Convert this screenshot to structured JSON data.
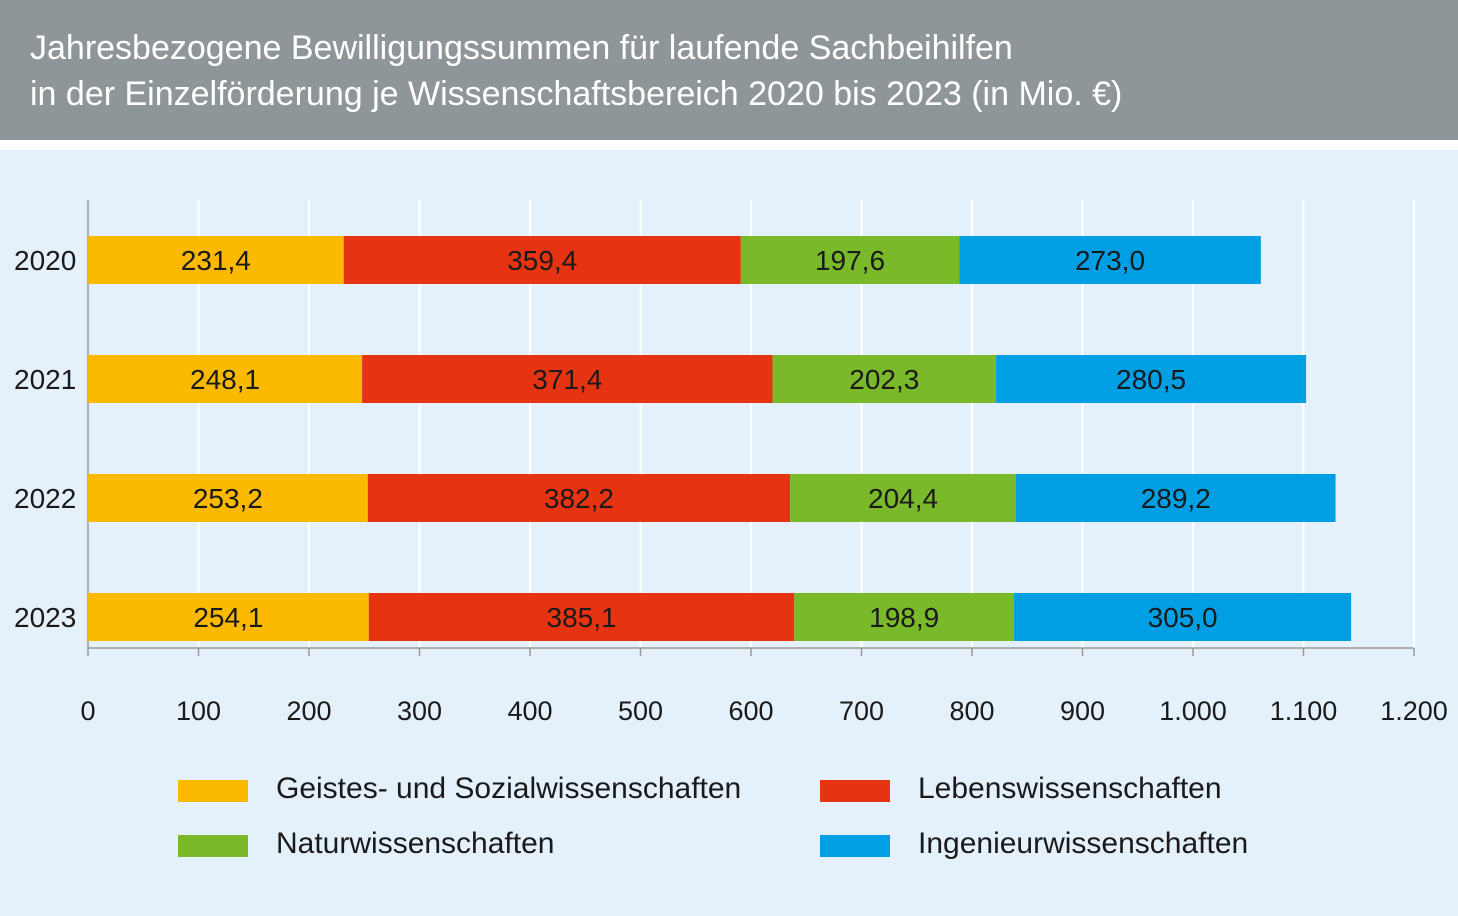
{
  "chart_data": {
    "type": "bar",
    "orientation": "horizontal",
    "stacked": true,
    "title_lines": [
      "Jahresbezogene Bewilligungssummen für laufende Sachbeihilfen",
      "in der Einzelförderung je Wissenschaftsbereich 2020 bis 2023 (in Mio. €)"
    ],
    "categories": [
      "2020",
      "2021",
      "2022",
      "2023"
    ],
    "series": [
      {
        "name": "Geistes- und Sozialwissenschaften",
        "color": "#fbb900",
        "values": [
          231.4,
          248.1,
          253.2,
          254.1
        ],
        "labels": [
          "231,4",
          "248,1",
          "253,2",
          "254,1"
        ]
      },
      {
        "name": "Lebenswissenschaften",
        "color": "#e63312",
        "values": [
          359.4,
          371.4,
          382.2,
          385.1
        ],
        "labels": [
          "359,4",
          "371,4",
          "382,2",
          "385,1"
        ]
      },
      {
        "name": "Naturwissenschaften",
        "color": "#7ab929",
        "values": [
          197.6,
          202.3,
          204.4,
          198.9
        ],
        "labels": [
          "197,6",
          "202,3",
          "204,4",
          "198,9"
        ]
      },
      {
        "name": "Ingenieurwissenschaften",
        "color": "#009fe3",
        "values": [
          273.0,
          280.5,
          289.2,
          305.0
        ],
        "labels": [
          "273,0",
          "280,5",
          "289,2",
          "305,0"
        ]
      }
    ],
    "xlim": [
      0,
      1200
    ],
    "x_ticks": [
      0,
      100,
      200,
      300,
      400,
      500,
      600,
      700,
      800,
      900,
      1000,
      1100,
      1200
    ],
    "x_tick_labels": [
      "0",
      "100",
      "200",
      "300",
      "400",
      "500",
      "600",
      "700",
      "800",
      "900",
      "1.000",
      "1.100",
      "1.200"
    ],
    "grid": true,
    "legend_position": "bottom"
  },
  "colors": {
    "header_bg": "#8f9699",
    "panel_bg": "#e4f0fa",
    "gridline": "#ffffff",
    "axis": "#9a9a9a",
    "text": "#1a1a1a"
  }
}
